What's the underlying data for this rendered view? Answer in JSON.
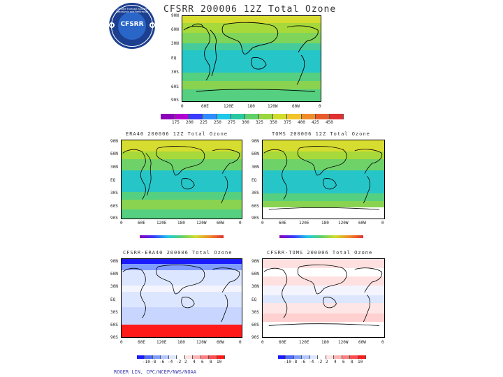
{
  "logo": {
    "text": "CFSRR",
    "ring_text": "Climate Forecast System Reanalysis and Reforecast"
  },
  "main": {
    "title": "CFSRR 200006 12Z Total Ozone",
    "lat_labels": [
      "90N",
      "60N",
      "30N",
      "EQ",
      "30S",
      "60S",
      "90S"
    ],
    "lon_labels": [
      "0",
      "60E",
      "120E",
      "180",
      "120W",
      "60W",
      "0"
    ],
    "colorbar_labels": [
      "175",
      "200",
      "225",
      "250",
      "275",
      "300",
      "325",
      "350",
      "375",
      "400",
      "425",
      "450"
    ],
    "colorbar_colors": [
      "#8b00b8",
      "#b000d0",
      "#3a3aff",
      "#2e8cff",
      "#1ec8e8",
      "#29c9a0",
      "#5fd06a",
      "#9ad63e",
      "#d2dc2c",
      "#f2c32a",
      "#f08c2a",
      "#e85a2a",
      "#e03030"
    ]
  },
  "era40": {
    "title": "ERA40 200006 12Z Total Ozone",
    "lat_labels": [
      "90N",
      "60N",
      "30N",
      "EQ",
      "30S",
      "60S",
      "90S"
    ],
    "lon_labels": [
      "0",
      "60E",
      "120E",
      "180",
      "120W",
      "60W",
      "0"
    ]
  },
  "toms": {
    "title": "TOMS 200006 12Z Total Ozone",
    "lat_labels": [
      "90N",
      "60N",
      "30N",
      "EQ",
      "30S",
      "60S",
      "90S"
    ],
    "lon_labels": [
      "0",
      "60E",
      "120E",
      "180",
      "120W",
      "60W",
      "0"
    ]
  },
  "diff_era": {
    "title": "CFSRR-ERA40 200006 Total Ozone",
    "lat_labels": [
      "90N",
      "60N",
      "30N",
      "EQ",
      "30S",
      "60S",
      "90S"
    ],
    "lon_labels": [
      "0",
      "60E",
      "120E",
      "180",
      "120W",
      "60W",
      "0"
    ],
    "colorbar_labels": [
      "-10",
      "-8",
      "-6",
      "-4",
      "-2",
      "2",
      "4",
      "6",
      "8",
      "10"
    ]
  },
  "diff_toms": {
    "title": "CFSRR-TOMS 200006 Total Ozone",
    "lat_labels": [
      "90N",
      "60N",
      "30N",
      "EQ",
      "30S",
      "60S",
      "90S"
    ],
    "lon_labels": [
      "0",
      "60E",
      "120E",
      "180",
      "120W",
      "60W",
      "0"
    ],
    "colorbar_labels": [
      "-10",
      "-8",
      "-6",
      "-4",
      "-2",
      "2",
      "4",
      "6",
      "8",
      "10"
    ]
  },
  "diff_colors": [
    "#1a1aff",
    "#4d6bff",
    "#7f9cff",
    "#b3c6ff",
    "#dde6ff",
    "#ffffff",
    "#ffe0e0",
    "#ffb3b3",
    "#ff8080",
    "#ff4d4d",
    "#ff1a1a"
  ],
  "footer": "ROGER LIN, CPC/NCEP/NWS/NOAA"
}
